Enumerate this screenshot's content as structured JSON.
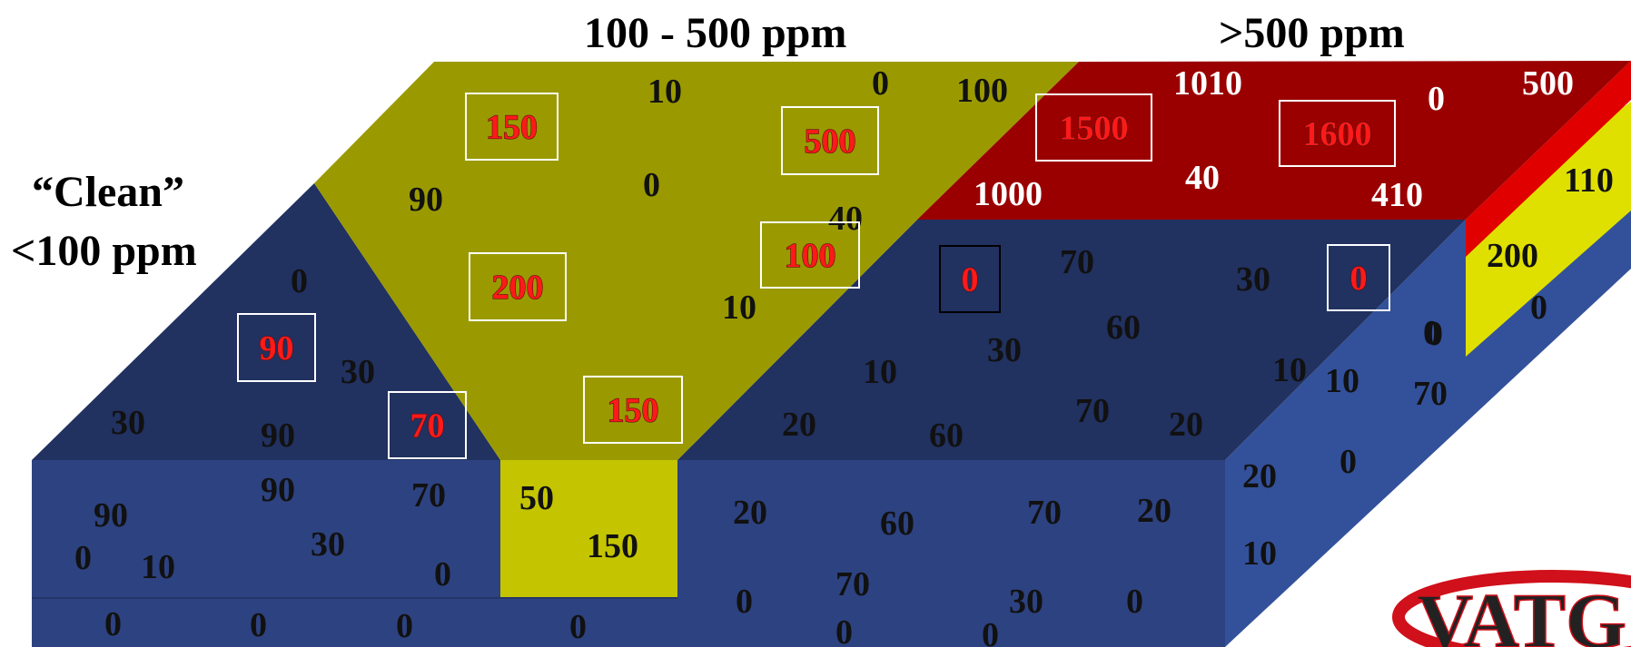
{
  "headings": {
    "mid": "100 - 500 ppm",
    "high": ">500 ppm",
    "clean_line1": "“Clean”",
    "clean_line2": "<100 ppm"
  },
  "colors": {
    "top_dark_blue": "#213160",
    "front_blue": "#2d4280",
    "right_side_blue": "#33519a",
    "olive_top": "#9a9a00",
    "olive_front": "#c4c400",
    "red_top": "#9b0000",
    "red_side": "#e00000",
    "yellow_side": "#e0e000",
    "logo_red": "#d0101a"
  },
  "logo": {
    "text": "VATG"
  },
  "values": [
    {
      "t": "10",
      "s": "dark"
    },
    {
      "t": "0",
      "s": "dark"
    },
    {
      "t": "100",
      "s": "dark"
    },
    {
      "t": "1010",
      "s": "white"
    },
    {
      "t": "0",
      "s": "white"
    },
    {
      "t": "500",
      "s": "white"
    },
    {
      "t": "150",
      "s": "red",
      "b": "white"
    },
    {
      "t": "500",
      "s": "red",
      "b": "white"
    },
    {
      "t": "1500",
      "s": "red",
      "b": "white"
    },
    {
      "t": "1600",
      "s": "red",
      "b": "white"
    },
    {
      "t": "90",
      "s": "dark"
    },
    {
      "t": "0",
      "s": "dark"
    },
    {
      "t": "1000",
      "s": "white"
    },
    {
      "t": "40",
      "s": "white"
    },
    {
      "t": "410",
      "s": "white"
    },
    {
      "t": "110",
      "s": "dark"
    },
    {
      "t": "40",
      "s": "dark"
    },
    {
      "t": "100",
      "s": "red",
      "b": "white"
    },
    {
      "t": "200",
      "s": "red",
      "b": "white"
    },
    {
      "t": "0",
      "s": "red",
      "b": "black"
    },
    {
      "t": "70",
      "s": "dark"
    },
    {
      "t": "30",
      "s": "dark"
    },
    {
      "t": "0",
      "s": "red",
      "b": "white"
    },
    {
      "t": "200",
      "s": "dark"
    },
    {
      "t": "0",
      "s": "dark"
    },
    {
      "t": "0",
      "s": "dark"
    },
    {
      "t": "0",
      "s": "dark"
    },
    {
      "t": "10",
      "s": "dark"
    },
    {
      "t": "60",
      "s": "dark"
    },
    {
      "t": "0",
      "s": "dark"
    },
    {
      "t": "90",
      "s": "red",
      "b": "white"
    },
    {
      "t": "30",
      "s": "dark"
    },
    {
      "t": "30",
      "s": "dark"
    },
    {
      "t": "10",
      "s": "dark"
    },
    {
      "t": "10",
      "s": "dark"
    },
    {
      "t": "10",
      "s": "dark"
    },
    {
      "t": "70",
      "s": "dark"
    },
    {
      "t": "30",
      "s": "dark"
    },
    {
      "t": "90",
      "s": "dark"
    },
    {
      "t": "70",
      "s": "red",
      "b": "white"
    },
    {
      "t": "150",
      "s": "red",
      "b": "white"
    },
    {
      "t": "20",
      "s": "dark"
    },
    {
      "t": "60",
      "s": "dark"
    },
    {
      "t": "70",
      "s": "dark"
    },
    {
      "t": "20",
      "s": "dark"
    },
    {
      "t": "0",
      "s": "dark"
    },
    {
      "t": "20",
      "s": "dark"
    },
    {
      "t": "90",
      "s": "dark"
    },
    {
      "t": "70",
      "s": "dark"
    },
    {
      "t": "50",
      "s": "dark"
    },
    {
      "t": "90",
      "s": "dark"
    },
    {
      "t": "20",
      "s": "dark"
    },
    {
      "t": "60",
      "s": "dark"
    },
    {
      "t": "70",
      "s": "dark"
    },
    {
      "t": "20",
      "s": "dark"
    },
    {
      "t": "0",
      "s": "dark"
    },
    {
      "t": "10",
      "s": "dark"
    },
    {
      "t": "30",
      "s": "dark"
    },
    {
      "t": "150",
      "s": "dark"
    },
    {
      "t": "0",
      "s": "dark"
    },
    {
      "t": "10",
      "s": "dark"
    },
    {
      "t": "70",
      "s": "dark"
    },
    {
      "t": "0",
      "s": "dark"
    },
    {
      "t": "30",
      "s": "dark"
    },
    {
      "t": "0",
      "s": "dark"
    },
    {
      "t": "0",
      "s": "dark"
    },
    {
      "t": "0",
      "s": "dark"
    },
    {
      "t": "0",
      "s": "dark"
    },
    {
      "t": "0",
      "s": "dark"
    },
    {
      "t": "0",
      "s": "dark"
    },
    {
      "t": "0",
      "s": "dark"
    }
  ]
}
